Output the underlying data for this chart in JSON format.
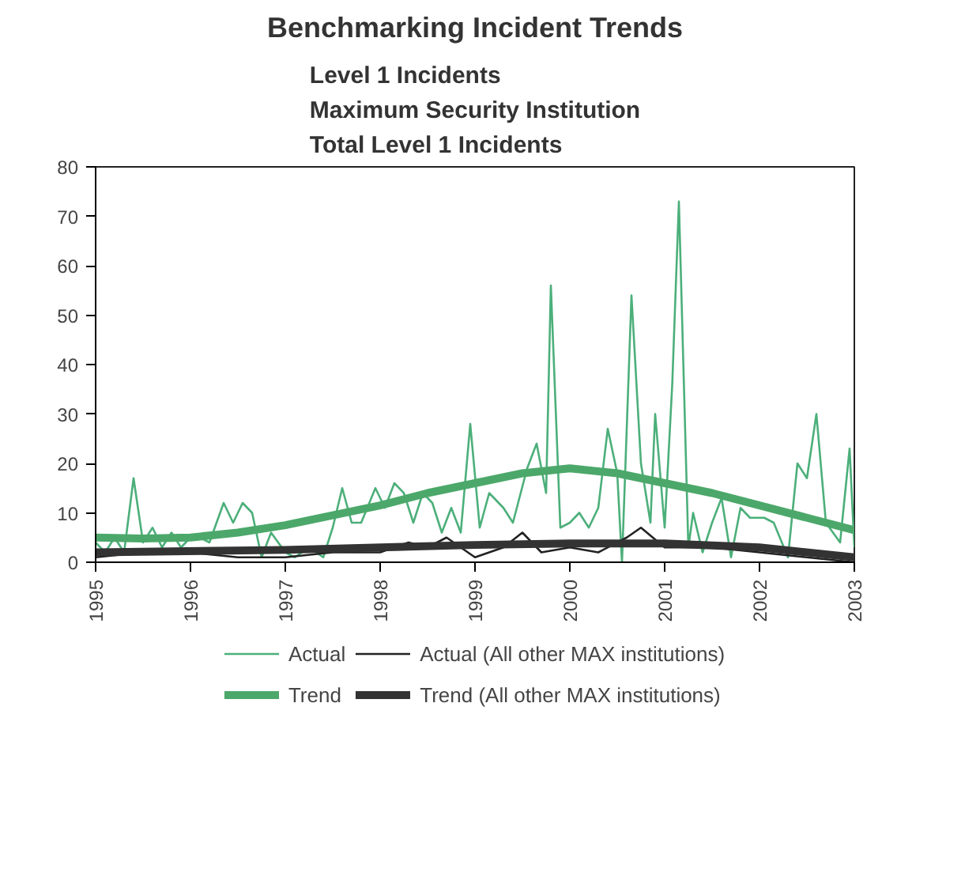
{
  "chart_data": {
    "type": "line",
    "title": "Benchmarking Incident Trends",
    "subtitle": "Level 1 Incidents\nMaximum Security Institution\nTotal Level 1 Incidents",
    "xlim": [
      1995,
      2003
    ],
    "xticks": [
      1995,
      1996,
      1997,
      1998,
      1999,
      2000,
      2001,
      2002,
      2003
    ],
    "ylim": [
      0,
      80
    ],
    "yticks": [
      0,
      10,
      20,
      30,
      40,
      50,
      60,
      70,
      80
    ],
    "grid": false,
    "legend": "bottom",
    "series": [
      {
        "name": "Actual",
        "color": "#4caf7a",
        "x": [
          1995.0,
          1995.1,
          1995.2,
          1995.3,
          1995.4,
          1995.5,
          1995.6,
          1995.7,
          1995.8,
          1995.9,
          1996.0,
          1996.1,
          1996.2,
          1996.35,
          1996.45,
          1996.55,
          1996.65,
          1996.75,
          1996.85,
          1997.0,
          1997.1,
          1997.25,
          1997.4,
          1997.5,
          1997.6,
          1997.7,
          1997.8,
          1997.95,
          1998.05,
          1998.15,
          1998.25,
          1998.35,
          1998.45,
          1998.55,
          1998.65,
          1998.75,
          1998.85,
          1998.95,
          1999.05,
          1999.15,
          1999.3,
          1999.4,
          1999.55,
          1999.65,
          1999.75,
          1999.8,
          1999.9,
          2000.0,
          2000.1,
          2000.2,
          2000.3,
          2000.4,
          2000.5,
          2000.55,
          2000.65,
          2000.75,
          2000.85,
          2000.9,
          2001.0,
          2001.08,
          2001.15,
          2001.25,
          2001.3,
          2001.4,
          2001.5,
          2001.6,
          2001.7,
          2001.8,
          2001.9,
          2002.05,
          2002.15,
          2002.3,
          2002.4,
          2002.5,
          2002.6,
          2002.7,
          2002.85,
          2002.95,
          2003.0
        ],
        "values": [
          4,
          2,
          5,
          2,
          17,
          4,
          7,
          3,
          6,
          3,
          5,
          5,
          4,
          12,
          8,
          12,
          10,
          1,
          6,
          2,
          1,
          3,
          1,
          7,
          15,
          8,
          8,
          15,
          11,
          16,
          14,
          8,
          14,
          12,
          6,
          11,
          6,
          28,
          7,
          14,
          11,
          8,
          19,
          24,
          14,
          56,
          7,
          8,
          10,
          7,
          11,
          27,
          18,
          0,
          54,
          20,
          8,
          30,
          7,
          36,
          73,
          3,
          10,
          2,
          8,
          13,
          1,
          11,
          9,
          9,
          8,
          1,
          20,
          17,
          30,
          8,
          4,
          23,
          3
        ]
      },
      {
        "name": "Trend",
        "color": "#4ca86a",
        "x": [
          1995,
          1995.5,
          1996,
          1996.5,
          1997,
          1997.5,
          1998,
          1998.5,
          1999,
          1999.5,
          2000,
          2000.5,
          2001,
          2001.5,
          2002,
          2002.5,
          2003
        ],
        "values": [
          5,
          4.8,
          5,
          6,
          7.5,
          9.5,
          11.5,
          14,
          16,
          18,
          19,
          18,
          16,
          14,
          11.5,
          9,
          6.5
        ]
      },
      {
        "name": "Actual (All other MAX institutions)",
        "color": "#222222",
        "x": [
          1995,
          1995.5,
          1996,
          1996.5,
          1997,
          1997.5,
          1998,
          1998.3,
          1998.5,
          1998.7,
          1999,
          1999.3,
          1999.5,
          1999.7,
          2000,
          2000.3,
          2000.6,
          2000.75,
          2001,
          2001.5,
          2002,
          2002.5,
          2003
        ],
        "values": [
          1,
          2,
          2,
          1,
          1,
          2,
          2,
          4,
          3,
          5,
          1,
          3,
          6,
          2,
          3,
          2,
          5,
          7,
          3,
          3,
          2,
          1,
          0
        ]
      },
      {
        "name": "Trend (All other MAX institutions)",
        "color": "#333333",
        "x": [
          1995,
          1997,
          1999,
          2000,
          2001,
          2002,
          2003
        ],
        "values": [
          2,
          2.5,
          3.5,
          3.8,
          3.8,
          3,
          1
        ]
      }
    ]
  }
}
